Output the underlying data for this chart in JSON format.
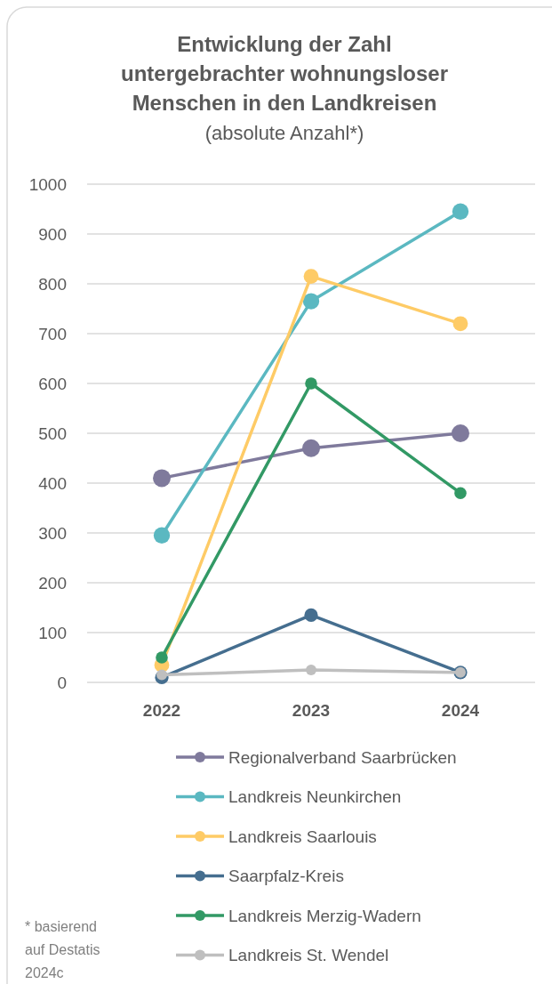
{
  "chart_data": {
    "type": "line",
    "title": "Entwicklung der Zahl untergebrachter wohnungsloser Menschen in den Landkreisen",
    "subtitle": "(absolute Anzahl*)",
    "categories": [
      "2022",
      "2023",
      "2024"
    ],
    "series": [
      {
        "name": "Regionalverband Saarbrücken",
        "color": "#7f7a9c",
        "values": [
          410,
          470,
          500
        ]
      },
      {
        "name": "Landkreis Neunkirchen",
        "color": "#5bb8c1",
        "values": [
          295,
          765,
          945
        ]
      },
      {
        "name": "Landkreis Saarlouis",
        "color": "#fecb66",
        "values": [
          35,
          815,
          720
        ]
      },
      {
        "name": "Saarpfalz-Kreis",
        "color": "#456e8f",
        "values": [
          10,
          135,
          20
        ]
      },
      {
        "name": "Landkreis Merzig-Wadern",
        "color": "#329965",
        "values": [
          50,
          600,
          380
        ]
      },
      {
        "name": "Landkreis St. Wendel",
        "color": "#bfbfbf",
        "values": [
          15,
          25,
          20
        ]
      }
    ],
    "ylim": [
      0,
      1000
    ],
    "yticks": [
      0,
      100,
      200,
      300,
      400,
      500,
      600,
      700,
      800,
      900,
      1000
    ],
    "grid": "y",
    "legend": "bottom",
    "marker": "circle",
    "line_style": "solid",
    "annotations": [
      "* basierend auf Destatis 2024c"
    ]
  }
}
